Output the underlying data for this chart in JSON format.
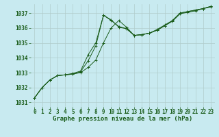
{
  "background_color": "#c8eaf0",
  "grid_color": "#b0cccc",
  "line_color": "#1a5c1a",
  "title": "Graphe pression niveau de la mer (hPa)",
  "xlim": [
    -0.5,
    23.5
  ],
  "ylim": [
    1030.7,
    1037.6
  ],
  "xticks": [
    0,
    1,
    2,
    3,
    4,
    5,
    6,
    7,
    8,
    9,
    10,
    11,
    12,
    13,
    14,
    15,
    16,
    17,
    18,
    19,
    20,
    21,
    22,
    23
  ],
  "yticks": [
    1031,
    1032,
    1033,
    1034,
    1035,
    1036,
    1037
  ],
  "series": [
    [
      1031.3,
      1032.0,
      1032.5,
      1032.8,
      1032.85,
      1032.9,
      1033.0,
      1033.35,
      1033.85,
      1035.0,
      1036.0,
      1036.5,
      1036.05,
      1035.5,
      1035.55,
      1035.65,
      1035.85,
      1036.15,
      1036.45,
      1036.95,
      1037.05,
      1037.15,
      1037.3,
      1037.4
    ],
    [
      1031.3,
      1032.0,
      1032.5,
      1032.8,
      1032.85,
      1032.95,
      1033.1,
      1034.2,
      1035.0,
      1036.85,
      1036.5,
      1036.1,
      1035.95,
      1035.5,
      1035.55,
      1035.65,
      1035.9,
      1036.2,
      1036.5,
      1037.0,
      1037.1,
      1037.2,
      1037.3,
      1037.45
    ],
    [
      1031.3,
      1032.0,
      1032.5,
      1032.8,
      1032.85,
      1032.9,
      1033.05,
      1033.8,
      1034.8,
      1036.85,
      1036.55,
      1036.05,
      1035.95,
      1035.5,
      1035.55,
      1035.65,
      1035.85,
      1036.15,
      1036.5,
      1037.0,
      1037.1,
      1037.2,
      1037.3,
      1037.45
    ]
  ],
  "figsize": [
    3.2,
    2.0
  ],
  "dpi": 100,
  "tick_font_size": 5.5,
  "title_font_size": 6.5
}
